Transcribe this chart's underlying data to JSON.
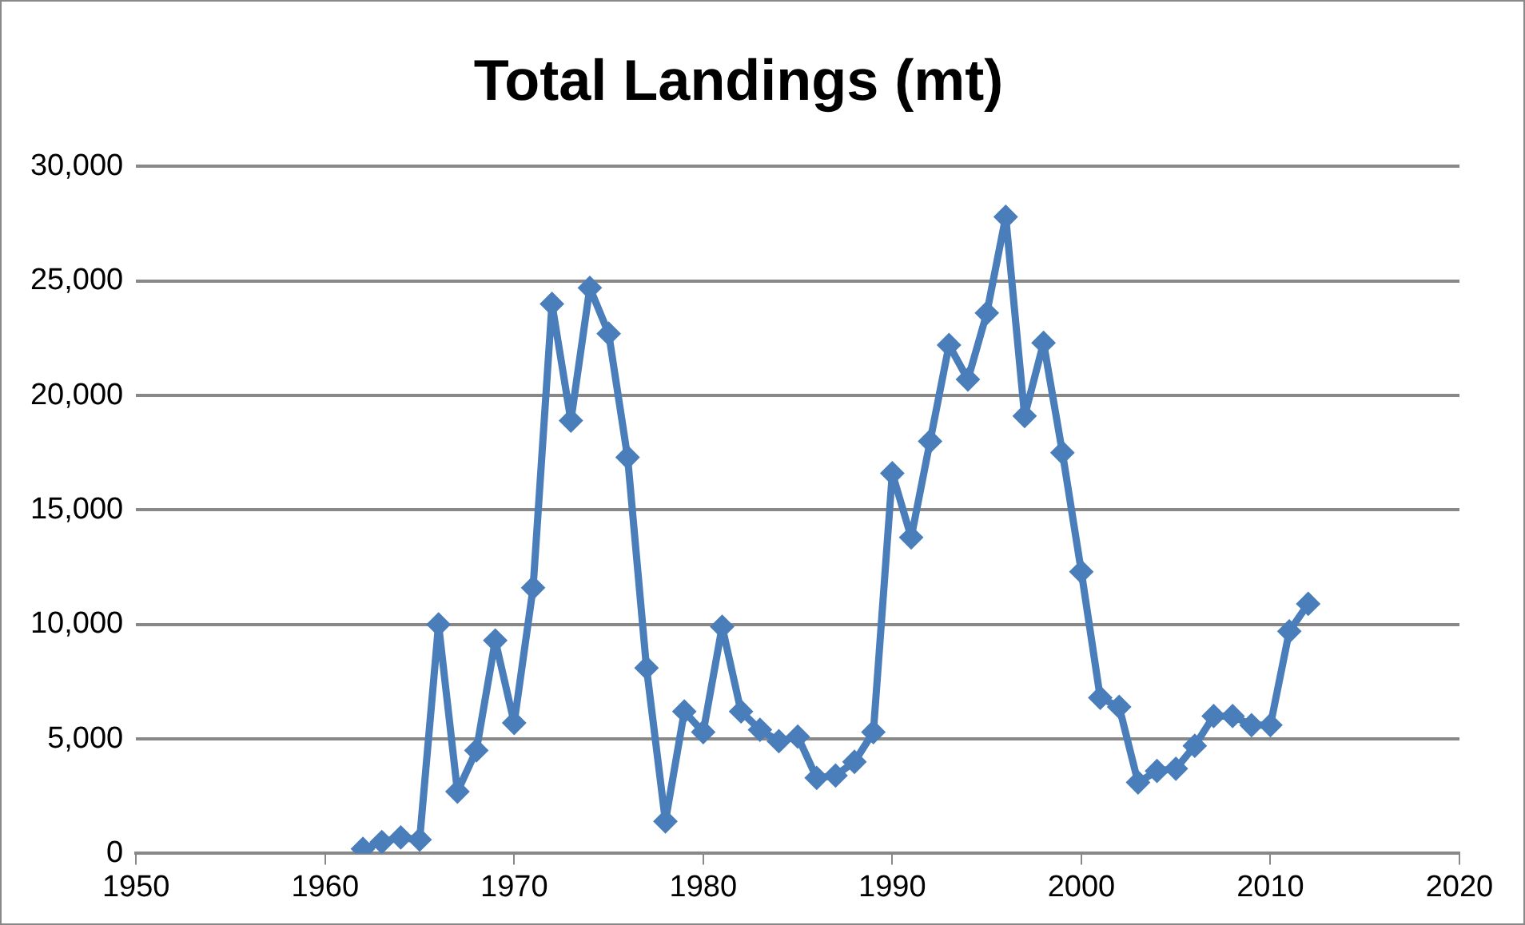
{
  "chart_data": {
    "type": "line",
    "title": "Total Landings (mt)",
    "x": [
      1962,
      1963,
      1964,
      1965,
      1966,
      1967,
      1968,
      1969,
      1970,
      1971,
      1972,
      1973,
      1974,
      1975,
      1976,
      1977,
      1978,
      1979,
      1980,
      1981,
      1982,
      1983,
      1984,
      1985,
      1986,
      1987,
      1988,
      1989,
      1990,
      1991,
      1992,
      1993,
      1994,
      1995,
      1996,
      1997,
      1998,
      1999,
      2000,
      2001,
      2002,
      2003,
      2004,
      2005,
      2006,
      2007,
      2008,
      2009,
      2010,
      2011,
      2012
    ],
    "series": [
      {
        "color": "#4a7ebb",
        "values": [
          200,
          500,
          700,
          600,
          10000,
          2700,
          4500,
          9300,
          5700,
          11600,
          24000,
          18900,
          24700,
          22700,
          17300,
          8100,
          1400,
          6200,
          5300,
          9900,
          6200,
          5400,
          4900,
          5100,
          3300,
          3400,
          4000,
          5300,
          16600,
          13800,
          18000,
          22200,
          20700,
          23600,
          27800,
          19100,
          22300,
          17500,
          12300,
          6800,
          6400,
          3100,
          3600,
          3700,
          4700,
          6000,
          6000,
          5600,
          5600,
          9700,
          10900
        ]
      }
    ],
    "xlim": [
      1950,
      2020
    ],
    "xticks": [
      1950,
      1960,
      1970,
      1980,
      1990,
      2000,
      2010,
      2020
    ],
    "ylim": [
      0,
      30000
    ],
    "yticks": [
      0,
      {
        "value": 5000,
        "label": "5,000"
      },
      {
        "value": 10000,
        "label": "10,000"
      },
      {
        "value": 15000,
        "label": "15,000"
      },
      {
        "value": 20000,
        "label": "20,000"
      },
      {
        "value": 25000,
        "label": "25,000"
      },
      {
        "value": 30000,
        "label": "30,000"
      }
    ],
    "grid": "y",
    "legend": false,
    "marker": "diamond",
    "line_style": "solid"
  }
}
